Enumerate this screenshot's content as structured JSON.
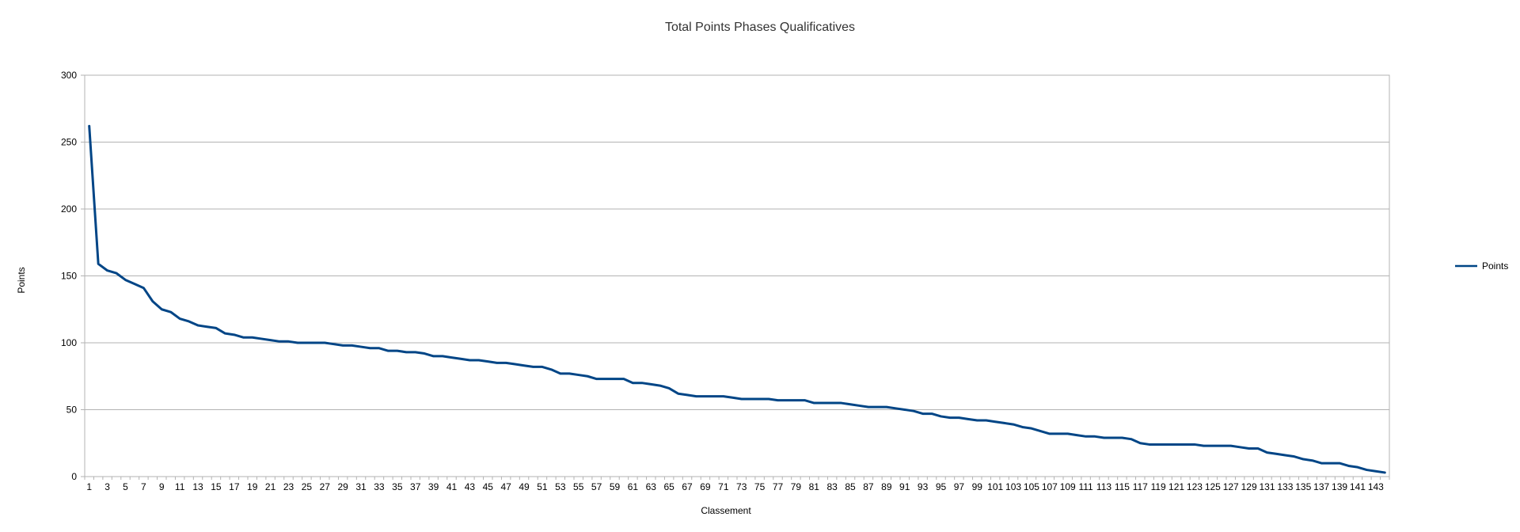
{
  "chart_data": {
    "type": "line",
    "title": "Total Points Phases Qualificatives",
    "xlabel": "Classement",
    "ylabel": "Points",
    "ylim": [
      0,
      300
    ],
    "yticks": [
      0,
      50,
      100,
      150,
      200,
      250,
      300
    ],
    "xlim": [
      1,
      144
    ],
    "grid": true,
    "legend_position": "right",
    "colors": {
      "line": "#004586",
      "grid": "#b3b3b3"
    },
    "series": [
      {
        "name": "Points",
        "values": [
          262,
          159,
          154,
          152,
          147,
          144,
          141,
          131,
          125,
          123,
          118,
          116,
          113,
          112,
          111,
          107,
          106,
          104,
          104,
          103,
          102,
          101,
          101,
          100,
          100,
          100,
          100,
          99,
          98,
          98,
          97,
          96,
          96,
          94,
          94,
          93,
          93,
          92,
          90,
          90,
          89,
          88,
          87,
          87,
          86,
          85,
          85,
          84,
          83,
          82,
          82,
          80,
          77,
          77,
          76,
          75,
          73,
          73,
          73,
          73,
          70,
          70,
          69,
          68,
          66,
          62,
          61,
          60,
          60,
          60,
          60,
          59,
          58,
          58,
          58,
          58,
          57,
          57,
          57,
          57,
          55,
          55,
          55,
          55,
          54,
          53,
          52,
          52,
          52,
          51,
          50,
          49,
          47,
          47,
          45,
          44,
          44,
          43,
          42,
          42,
          41,
          40,
          39,
          37,
          36,
          34,
          32,
          32,
          32,
          31,
          30,
          30,
          29,
          29,
          29,
          28,
          25,
          24,
          24,
          24,
          24,
          24,
          24,
          23,
          23,
          23,
          23,
          22,
          21,
          21,
          18,
          17,
          16,
          15,
          13,
          12,
          10,
          10,
          10,
          8,
          7,
          5,
          4,
          3
        ]
      }
    ]
  }
}
